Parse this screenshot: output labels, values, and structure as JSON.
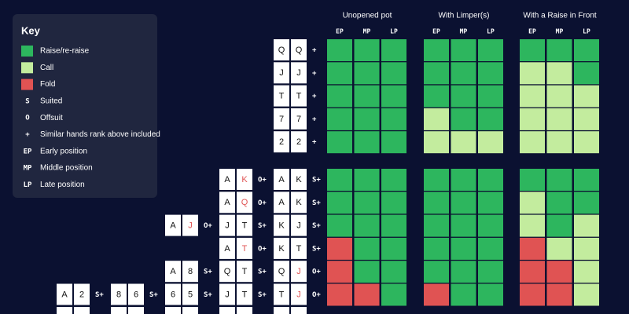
{
  "key": {
    "title": "Key",
    "items": [
      {
        "swatch": "#2db65e",
        "label": "Raise/re-raise"
      },
      {
        "swatch": "#c3ec9e",
        "label": "Call"
      },
      {
        "swatch": "#e05353",
        "label": "Fold"
      },
      {
        "symbol": "S",
        "label": "Suited"
      },
      {
        "symbol": "O",
        "label": "Offsuit"
      },
      {
        "symbol": "+",
        "label": "Similar hands rank above included"
      },
      {
        "symbol": "EP",
        "label": "Early position"
      },
      {
        "symbol": "MP",
        "label": "Middle position"
      },
      {
        "symbol": "LP",
        "label": "Late position"
      }
    ]
  },
  "headers": [
    {
      "title": "Unopened pot",
      "positions": [
        "EP",
        "MP",
        "LP"
      ]
    },
    {
      "title": "With Limper(s)",
      "positions": [
        "EP",
        "MP",
        "LP"
      ]
    },
    {
      "title": "With a Raise in Front",
      "positions": [
        "EP",
        "MP",
        "LP"
      ]
    }
  ],
  "blocks": [
    {
      "rows": [
        {
          "hands": [
            null,
            null,
            null,
            null,
            {
              "cards": [
                {
                  "rank": "Q"
                },
                {
                  "rank": "Q"
                }
              ],
              "suffix": "+"
            }
          ],
          "actions": [
            0,
            0,
            0,
            0,
            0,
            0,
            0,
            0,
            0
          ]
        },
        {
          "hands": [
            null,
            null,
            null,
            null,
            {
              "cards": [
                {
                  "rank": "J"
                },
                {
                  "rank": "J"
                }
              ],
              "suffix": "+"
            }
          ],
          "actions": [
            0,
            0,
            0,
            0,
            0,
            0,
            1,
            1,
            0
          ]
        },
        {
          "hands": [
            null,
            null,
            null,
            null,
            {
              "cards": [
                {
                  "rank": "T"
                },
                {
                  "rank": "T"
                }
              ],
              "suffix": "+"
            }
          ],
          "actions": [
            0,
            0,
            0,
            0,
            0,
            0,
            1,
            1,
            1
          ]
        },
        {
          "hands": [
            null,
            null,
            null,
            null,
            {
              "cards": [
                {
                  "rank": "7"
                },
                {
                  "rank": "7"
                }
              ],
              "suffix": "+"
            }
          ],
          "actions": [
            0,
            0,
            0,
            1,
            0,
            0,
            1,
            1,
            1
          ]
        },
        {
          "hands": [
            null,
            null,
            null,
            null,
            {
              "cards": [
                {
                  "rank": "2"
                },
                {
                  "rank": "2"
                }
              ],
              "suffix": "+"
            }
          ],
          "actions": [
            0,
            0,
            0,
            1,
            1,
            1,
            1,
            1,
            1
          ]
        }
      ]
    },
    {
      "rows": [
        {
          "hands": [
            null,
            null,
            null,
            {
              "cards": [
                {
                  "rank": "A"
                },
                {
                  "rank": "K",
                  "color": "#e05353"
                }
              ],
              "suffix": "O+"
            },
            {
              "cards": [
                {
                  "rank": "A"
                },
                {
                  "rank": "K"
                }
              ],
              "suffix": "S+"
            }
          ],
          "actions": [
            0,
            0,
            0,
            0,
            0,
            0,
            0,
            0,
            0
          ]
        },
        {
          "hands": [
            null,
            null,
            null,
            {
              "cards": [
                {
                  "rank": "A"
                },
                {
                  "rank": "Q",
                  "color": "#e05353"
                }
              ],
              "suffix": "O+"
            },
            {
              "cards": [
                {
                  "rank": "A"
                },
                {
                  "rank": "K"
                }
              ],
              "suffix": "S+"
            }
          ],
          "actions": [
            0,
            0,
            0,
            0,
            0,
            0,
            1,
            0,
            0
          ]
        },
        {
          "hands": [
            null,
            null,
            {
              "cards": [
                {
                  "rank": "A"
                },
                {
                  "rank": "J",
                  "color": "#e05353"
                }
              ],
              "suffix": "O+"
            },
            {
              "cards": [
                {
                  "rank": "J"
                },
                {
                  "rank": "T"
                }
              ],
              "suffix": "S+"
            },
            {
              "cards": [
                {
                  "rank": "K"
                },
                {
                  "rank": "J"
                }
              ],
              "suffix": "S+"
            }
          ],
          "actions": [
            0,
            0,
            0,
            0,
            0,
            0,
            1,
            0,
            1
          ]
        },
        {
          "hands": [
            null,
            null,
            null,
            {
              "cards": [
                {
                  "rank": "A"
                },
                {
                  "rank": "T",
                  "color": "#e05353"
                }
              ],
              "suffix": "O+"
            },
            {
              "cards": [
                {
                  "rank": "K"
                },
                {
                  "rank": "T"
                }
              ],
              "suffix": "S+"
            }
          ],
          "actions": [
            2,
            0,
            0,
            0,
            0,
            0,
            2,
            1,
            1
          ]
        },
        {
          "hands": [
            null,
            null,
            {
              "cards": [
                {
                  "rank": "A"
                },
                {
                  "rank": "8"
                }
              ],
              "suffix": "S+"
            },
            {
              "cards": [
                {
                  "rank": "Q"
                },
                {
                  "rank": "T"
                }
              ],
              "suffix": "S+"
            },
            {
              "cards": [
                {
                  "rank": "Q"
                },
                {
                  "rank": "J",
                  "color": "#e05353"
                }
              ],
              "suffix": "O+"
            }
          ],
          "actions": [
            2,
            0,
            0,
            0,
            0,
            0,
            2,
            2,
            1
          ]
        },
        {
          "hands": [
            {
              "cards": [
                {
                  "rank": "A"
                },
                {
                  "rank": "2"
                }
              ],
              "suffix": "S+"
            },
            {
              "cards": [
                {
                  "rank": "8"
                },
                {
                  "rank": "6"
                }
              ],
              "suffix": "S+"
            },
            {
              "cards": [
                {
                  "rank": "6"
                },
                {
                  "rank": "5"
                }
              ],
              "suffix": "S+"
            },
            {
              "cards": [
                {
                  "rank": "J"
                },
                {
                  "rank": "T"
                }
              ],
              "suffix": "S+"
            },
            {
              "cards": [
                {
                  "rank": "T"
                },
                {
                  "rank": "J",
                  "color": "#e05353"
                }
              ],
              "suffix": "O+"
            }
          ],
          "actions": [
            2,
            2,
            0,
            2,
            0,
            0,
            2,
            2,
            1
          ]
        }
      ]
    }
  ]
}
